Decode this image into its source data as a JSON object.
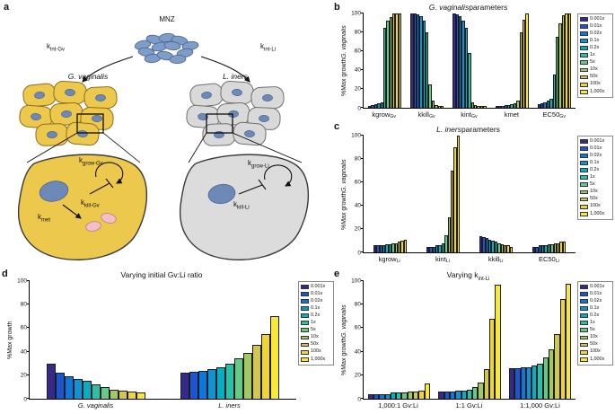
{
  "panel_labels": {
    "a": "a",
    "b": "b",
    "c": "c",
    "d": "d",
    "e": "e"
  },
  "diagram": {
    "mnz": "MNZ",
    "kint_gv": {
      "base": "k",
      "sub": "int-Gv"
    },
    "kint_li": {
      "base": "k",
      "sub": "int-Li"
    },
    "left_species": "G. vaginalis",
    "right_species": "L. iners",
    "kgrow_gv": {
      "base": "k",
      "sub": "grow-Gv"
    },
    "kkill_gv": {
      "base": "k",
      "sub": "kill-Gv"
    },
    "kmet": {
      "base": "k",
      "sub": "met"
    },
    "kgrow_li": {
      "base": "k",
      "sub": "grow-Li"
    },
    "kkill_li": {
      "base": "k",
      "sub": "kill-Li"
    }
  },
  "legend": {
    "labels": [
      "0.001x",
      "0.01x",
      "0.02x",
      "0.1x",
      "0.2x",
      "1x",
      "5x",
      "10x",
      "50x",
      "100x",
      "1,000x"
    ],
    "colors": [
      "#352a87",
      "#1b55d0",
      "#0f77db",
      "#1192d2",
      "#07adc2",
      "#2cc0a8",
      "#66ca86",
      "#a2c863",
      "#cfc751",
      "#edd43c",
      "#f9e838"
    ]
  },
  "chart_data": [
    {
      "id": "b",
      "type": "bar",
      "title": [
        {
          "t": "G. vaginalis",
          "italic": true
        },
        {
          "t": " parameters"
        }
      ],
      "ylabel": [
        {
          "t": "%Max growth "
        },
        {
          "t": "G. vaginalis",
          "italic": true
        }
      ],
      "ylim": [
        0,
        100
      ],
      "yticks": [
        0,
        20,
        40,
        60,
        80,
        100
      ],
      "legend": true,
      "groups": [
        {
          "label": {
            "base": "kgrow",
            "sub": "Gv",
            "italic": false
          },
          "values": [
            2,
            3,
            4,
            5,
            6,
            85,
            92,
            96,
            100,
            100,
            100
          ]
        },
        {
          "label": {
            "base": "kkill",
            "sub": "Gv",
            "italic": false
          },
          "values": [
            100,
            100,
            99,
            97,
            92,
            80,
            25,
            8,
            3,
            2,
            2
          ]
        },
        {
          "label": {
            "base": "kint",
            "sub": "Gv",
            "italic": false
          },
          "values": [
            100,
            99,
            97,
            92,
            85,
            58,
            6,
            3,
            2,
            2,
            2
          ]
        },
        {
          "label": {
            "base": "kmet",
            "sub": "",
            "italic": false
          },
          "values": [
            2,
            2,
            2,
            3,
            3,
            4,
            5,
            8,
            80,
            93,
            100
          ]
        },
        {
          "label": {
            "base": "EC50",
            "sub": "Gv",
            "italic": false
          },
          "values": [
            4,
            5,
            6,
            8,
            10,
            35,
            75,
            90,
            98,
            100,
            100
          ]
        }
      ]
    },
    {
      "id": "c",
      "type": "bar",
      "title": [
        {
          "t": "L. iners",
          "italic": true
        },
        {
          "t": " parameters"
        }
      ],
      "ylabel": [
        {
          "t": "%Max growth "
        },
        {
          "t": "G. vaginalis",
          "italic": true
        }
      ],
      "ylim": [
        0,
        100
      ],
      "yticks": [
        0,
        20,
        40,
        60,
        80,
        100
      ],
      "legend": true,
      "groups": [
        {
          "label": {
            "base": "kgrow",
            "sub": "Li",
            "italic": false
          },
          "values": [
            6,
            6,
            6,
            6,
            7,
            7,
            8,
            8,
            9,
            10,
            11
          ]
        },
        {
          "label": {
            "base": "kint",
            "sub": "Li",
            "italic": false
          },
          "values": [
            5,
            5,
            5,
            6,
            6,
            8,
            15,
            30,
            70,
            90,
            100
          ]
        },
        {
          "label": {
            "base": "kkill",
            "sub": "Li",
            "italic": false
          },
          "values": [
            14,
            13,
            12,
            11,
            10,
            9,
            8,
            7,
            6,
            6,
            5
          ]
        },
        {
          "label": {
            "base": "EC50",
            "sub": "Li",
            "italic": false
          },
          "values": [
            5,
            5,
            6,
            6,
            6,
            7,
            7,
            8,
            8,
            9,
            9
          ]
        }
      ]
    },
    {
      "id": "d",
      "type": "bar",
      "title": [
        {
          "t": "Varying initial Gv:Li ratio"
        }
      ],
      "ylabel": [
        {
          "t": "%Max growth"
        }
      ],
      "ylim": [
        0,
        100
      ],
      "yticks": [
        0,
        20,
        40,
        60,
        80,
        100
      ],
      "legend": true,
      "groups": [
        {
          "label": {
            "base": "G. vaginalis",
            "sub": "",
            "italic": true
          },
          "values": [
            30,
            22,
            19,
            17,
            15,
            12,
            10,
            8,
            7,
            6,
            5
          ]
        },
        {
          "label": {
            "base": "L. iners",
            "sub": "",
            "italic": true
          },
          "values": [
            22,
            23,
            24,
            25,
            27,
            30,
            34,
            39,
            46,
            55,
            70
          ]
        }
      ]
    },
    {
      "id": "e",
      "type": "bar",
      "title": [
        {
          "t": "Varying k"
        },
        {
          "t": "int-Li",
          "sub": true
        }
      ],
      "ylabel": [
        {
          "t": "%Max growth "
        },
        {
          "t": "G. vaginalis",
          "italic": true
        }
      ],
      "ylim": [
        0,
        100
      ],
      "yticks": [
        0,
        20,
        40,
        60,
        80,
        100
      ],
      "legend": true,
      "groups": [
        {
          "label": {
            "base": "1,000:1 Gv:Li",
            "sub": "",
            "italic": false
          },
          "values": [
            4,
            4,
            4,
            4,
            5,
            5,
            5,
            6,
            6,
            7,
            13
          ]
        },
        {
          "label": {
            "base": "1:1 Gv:Li",
            "sub": "",
            "italic": false
          },
          "values": [
            6,
            6,
            6,
            7,
            7,
            8,
            10,
            14,
            25,
            68,
            97
          ]
        },
        {
          "label": {
            "base": "1:1,000 Gv:Li",
            "sub": "",
            "italic": false
          },
          "values": [
            26,
            26,
            27,
            27,
            28,
            30,
            35,
            42,
            55,
            85,
            98
          ]
        }
      ]
    }
  ]
}
